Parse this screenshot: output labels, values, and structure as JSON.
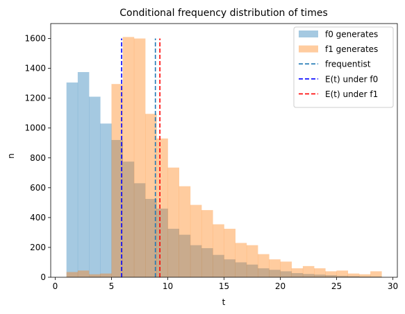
{
  "chart_data": {
    "type": "bar",
    "title": "Conditional frequency distribution of times",
    "xlabel": "t",
    "ylabel": "n",
    "xlim": [
      -0.4,
      30.4
    ],
    "ylim": [
      0,
      1700
    ],
    "x_ticks": [
      0,
      5,
      10,
      15,
      20,
      25,
      30
    ],
    "y_ticks": [
      0,
      200,
      400,
      600,
      800,
      1000,
      1200,
      1400,
      1600
    ],
    "bin_edges": [
      1,
      2,
      3,
      4,
      5,
      6,
      7,
      8,
      9,
      10,
      11,
      12,
      13,
      14,
      15,
      16,
      17,
      18,
      19,
      20,
      21,
      22,
      23,
      24,
      25,
      26,
      27,
      28,
      29
    ],
    "series": [
      {
        "name": "f0 generates",
        "color": "#1f77b4",
        "alpha": 0.4,
        "counts": [
          1305,
          1375,
          1210,
          1030,
          920,
          775,
          630,
          525,
          460,
          325,
          285,
          215,
          195,
          150,
          120,
          100,
          85,
          60,
          50,
          40,
          28,
          22,
          18,
          14,
          10,
          8,
          5,
          5
        ]
      },
      {
        "name": "f1 generates",
        "color": "#ff7f0e",
        "alpha": 0.4,
        "counts": [
          35,
          45,
          20,
          25,
          1295,
          1610,
          1600,
          1095,
          930,
          735,
          610,
          485,
          450,
          355,
          325,
          230,
          215,
          155,
          120,
          105,
          60,
          75,
          60,
          40,
          45,
          25,
          20,
          40
        ]
      }
    ],
    "vlines": [
      {
        "name": "frequentist",
        "x": 8.9,
        "color": "#1f77b4",
        "style": "dashed"
      },
      {
        "name": "E(t) under f0",
        "x": 5.9,
        "color": "#0000ff",
        "style": "dashed"
      },
      {
        "name": "E(t) under f1",
        "x": 9.3,
        "color": "#ff0000",
        "style": "dashed"
      }
    ],
    "vline_range": [
      0,
      1600
    ],
    "legend": {
      "placement": "top-right",
      "entries": [
        {
          "label": "f0 generates",
          "kind": "patch",
          "color": "#1f77b4",
          "alpha": 0.4
        },
        {
          "label": "f1 generates",
          "kind": "patch",
          "color": "#ff7f0e",
          "alpha": 0.4
        },
        {
          "label": "frequentist",
          "kind": "line",
          "color": "#1f77b4"
        },
        {
          "label": "E(t) under f0",
          "kind": "line",
          "color": "#0000ff"
        },
        {
          "label": "E(t) under f1",
          "kind": "line",
          "color": "#ff0000"
        }
      ]
    },
    "grid": false
  }
}
